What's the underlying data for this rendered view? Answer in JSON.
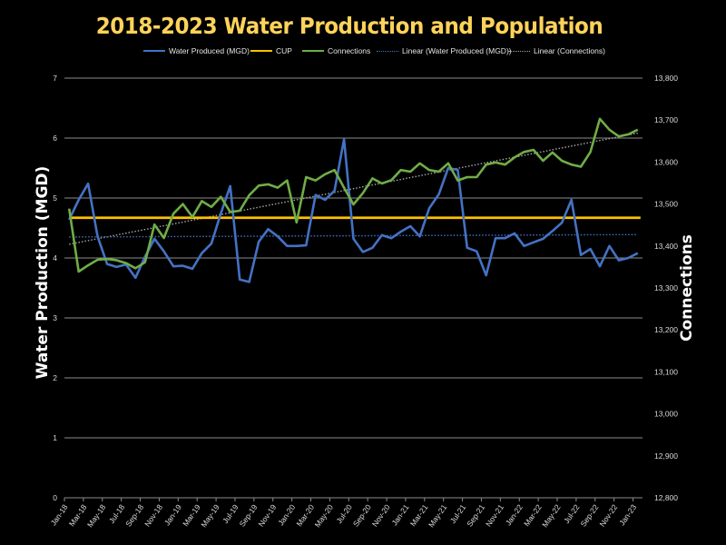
{
  "chart_data": {
    "type": "line",
    "title": "2018-2023 Water Production and Population",
    "xlabel": "",
    "ylabel": "Water Production (MGD)",
    "y2label": "Connections",
    "ylim": [
      0,
      7
    ],
    "y2lim": [
      12800,
      13800
    ],
    "yticks": [
      "0",
      "1",
      "2",
      "3",
      "4",
      "5",
      "6",
      "7"
    ],
    "y2ticks": [
      "12,800",
      "12,900",
      "13,000",
      "13,100",
      "13,200",
      "13,300",
      "13,400",
      "13,500",
      "13,600",
      "13,700",
      "13,800"
    ],
    "grid": true,
    "legend_position": "top",
    "x_tick_labels": [
      "Jan-18",
      "Mar-18",
      "May-18",
      "Jul-18",
      "Sep-18",
      "Nov-18",
      "Jan-19",
      "Mar-19",
      "May-19",
      "Jul-19",
      "Sep-19",
      "Nov-19",
      "Jan-20",
      "Mar-20",
      "May-20",
      "Jul-20",
      "Sep-20",
      "Nov-20",
      "Jan-21",
      "Mar-21",
      "May-21",
      "Jul-21",
      "Sep-21",
      "Nov-21",
      "Jan-22",
      "Mar-22",
      "May-22",
      "Jul-22",
      "Sep-22",
      "Nov-22",
      "Jan-23"
    ],
    "x": [
      "Jan-18",
      "Feb-18",
      "Mar-18",
      "Apr-18",
      "May-18",
      "Jun-18",
      "Jul-18",
      "Aug-18",
      "Sep-18",
      "Oct-18",
      "Nov-18",
      "Dec-18",
      "Jan-19",
      "Feb-19",
      "Mar-19",
      "Apr-19",
      "May-19",
      "Jun-19",
      "Jul-19",
      "Aug-19",
      "Sep-19",
      "Oct-19",
      "Nov-19",
      "Dec-19",
      "Jan-20",
      "Feb-20",
      "Mar-20",
      "Apr-20",
      "May-20",
      "Jun-20",
      "Jul-20",
      "Aug-20",
      "Sep-20",
      "Oct-20",
      "Nov-20",
      "Dec-20",
      "Jan-21",
      "Feb-21",
      "Mar-21",
      "Apr-21",
      "May-21",
      "Jun-21",
      "Jul-21",
      "Aug-21",
      "Sep-21",
      "Oct-21",
      "Nov-21",
      "Dec-21",
      "Jan-22",
      "Feb-22",
      "Mar-22",
      "Apr-22",
      "May-22",
      "Jun-22",
      "Jul-22",
      "Aug-22",
      "Sep-22",
      "Oct-22",
      "Nov-22",
      "Dec-22",
      "Jan-23"
    ],
    "series": [
      {
        "name": "Water Produced (MGD)",
        "axis": "left",
        "color": "#4472C4",
        "style": "solid",
        "values": [
          4.64,
          4.97,
          5.24,
          4.36,
          3.9,
          3.85,
          3.89,
          3.67,
          4.02,
          4.32,
          4.11,
          3.86,
          3.87,
          3.82,
          4.08,
          4.24,
          4.74,
          5.2,
          3.64,
          3.6,
          4.27,
          4.48,
          4.36,
          4.2,
          4.2,
          4.21,
          5.05,
          4.97,
          5.12,
          5.98,
          4.32,
          4.1,
          4.17,
          4.38,
          4.33,
          4.44,
          4.53,
          4.36,
          4.83,
          5.06,
          5.5,
          5.47,
          4.17,
          4.11,
          3.71,
          4.33,
          4.33,
          4.41,
          4.2,
          4.26,
          4.32,
          4.45,
          4.59,
          4.97,
          4.05,
          4.15,
          3.86,
          4.2,
          3.96,
          4.0,
          4.08
        ]
      },
      {
        "name": "CUP",
        "axis": "left",
        "color": "#FFC000",
        "style": "solid",
        "constant": 4.67
      },
      {
        "name": "Connections",
        "axis": "right",
        "color": "#70AD47",
        "style": "solid",
        "values": [
          13489,
          13339,
          13354,
          13367,
          13369,
          13366,
          13359,
          13347,
          13361,
          13451,
          13419,
          13477,
          13500,
          13469,
          13507,
          13493,
          13517,
          13481,
          13484,
          13521,
          13544,
          13547,
          13539,
          13556,
          13456,
          13564,
          13556,
          13571,
          13581,
          13539,
          13499,
          13526,
          13561,
          13549,
          13557,
          13581,
          13577,
          13597,
          13581,
          13577,
          13597,
          13556,
          13564,
          13564,
          13594,
          13599,
          13594,
          13611,
          13624,
          13629,
          13603,
          13623,
          13603,
          13594,
          13589,
          13624,
          13703,
          13677,
          13661,
          13666,
          13677
        ]
      },
      {
        "name": "Linear (Water Produced (MGD))",
        "axis": "left",
        "color": "#4472C4",
        "style": "dotted",
        "trend": [
          4.35,
          4.39
        ]
      },
      {
        "name": "Linear (Connections)",
        "axis": "right",
        "color": "#A6A6A6",
        "style": "dotted",
        "trend": [
          13404,
          13669
        ]
      }
    ]
  }
}
